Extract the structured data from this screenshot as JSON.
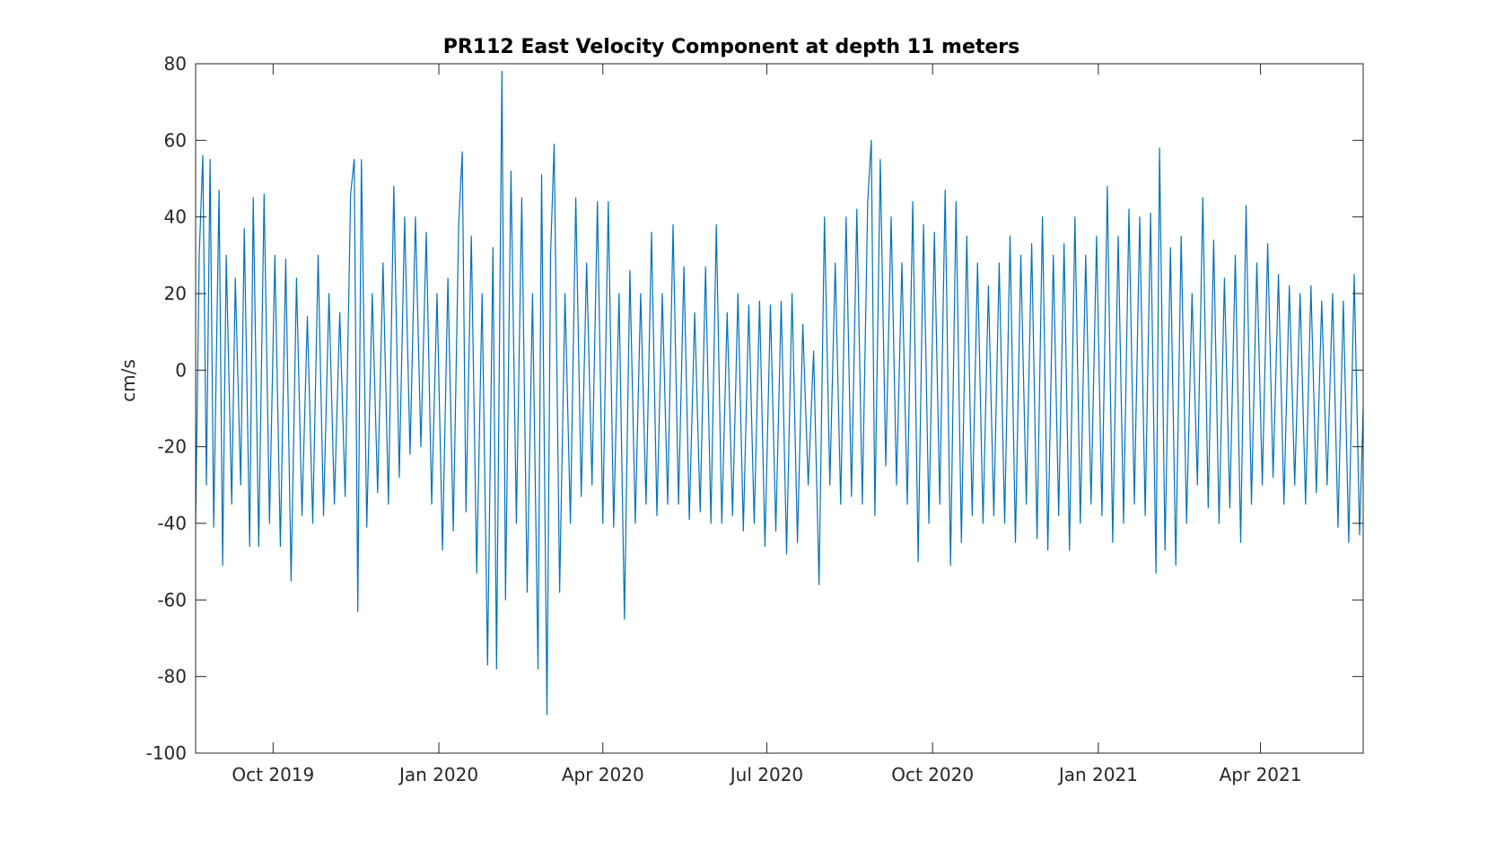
{
  "chart_data": {
    "type": "line",
    "title": "PR112 East Velocity Component at depth 11 meters",
    "xlabel": "",
    "ylabel": "cm/s",
    "x_range": [
      "2019-08-19",
      "2021-05-28"
    ],
    "ylim": [
      -100,
      80
    ],
    "yticks": [
      -100,
      -80,
      -60,
      -40,
      -20,
      0,
      20,
      40,
      60,
      80
    ],
    "xticks": [
      {
        "label": "Oct 2019",
        "date": "2019-10-01"
      },
      {
        "label": "Jan 2020",
        "date": "2020-01-01"
      },
      {
        "label": "Apr 2020",
        "date": "2020-04-01"
      },
      {
        "label": "Jul 2020",
        "date": "2020-07-01"
      },
      {
        "label": "Oct 2020",
        "date": "2020-10-01"
      },
      {
        "label": "Jan 2021",
        "date": "2021-01-01"
      },
      {
        "label": "Apr 2021",
        "date": "2021-04-01"
      }
    ],
    "grid": false,
    "series": [
      {
        "color": "#0072BD",
        "note_values": "hourly-resolution values approximated by envelope points",
        "points": [
          {
            "x": "2019-08-19",
            "y": -40
          },
          {
            "x": "2019-08-21",
            "y": 30
          },
          {
            "x": "2019-08-23",
            "y": 56
          },
          {
            "x": "2019-08-25",
            "y": -30
          },
          {
            "x": "2019-08-27",
            "y": 55
          },
          {
            "x": "2019-08-29",
            "y": -41
          },
          {
            "x": "2019-09-01",
            "y": 47
          },
          {
            "x": "2019-09-03",
            "y": -51
          },
          {
            "x": "2019-09-05",
            "y": 30
          },
          {
            "x": "2019-09-08",
            "y": -35
          },
          {
            "x": "2019-09-10",
            "y": 24
          },
          {
            "x": "2019-09-13",
            "y": -30
          },
          {
            "x": "2019-09-15",
            "y": 37
          },
          {
            "x": "2019-09-18",
            "y": -46
          },
          {
            "x": "2019-09-20",
            "y": 45
          },
          {
            "x": "2019-09-23",
            "y": -46
          },
          {
            "x": "2019-09-26",
            "y": 46
          },
          {
            "x": "2019-09-29",
            "y": -40
          },
          {
            "x": "2019-10-02",
            "y": 30
          },
          {
            "x": "2019-10-05",
            "y": -46
          },
          {
            "x": "2019-10-08",
            "y": 29
          },
          {
            "x": "2019-10-11",
            "y": -55
          },
          {
            "x": "2019-10-14",
            "y": 24
          },
          {
            "x": "2019-10-17",
            "y": -38
          },
          {
            "x": "2019-10-20",
            "y": 14
          },
          {
            "x": "2019-10-23",
            "y": -40
          },
          {
            "x": "2019-10-26",
            "y": 30
          },
          {
            "x": "2019-10-29",
            "y": -38
          },
          {
            "x": "2019-11-01",
            "y": 20
          },
          {
            "x": "2019-11-04",
            "y": -35
          },
          {
            "x": "2019-11-07",
            "y": 15
          },
          {
            "x": "2019-11-10",
            "y": -33
          },
          {
            "x": "2019-11-13",
            "y": 46
          },
          {
            "x": "2019-11-15",
            "y": 55
          },
          {
            "x": "2019-11-17",
            "y": -63
          },
          {
            "x": "2019-11-19",
            "y": 55
          },
          {
            "x": "2019-11-22",
            "y": -41
          },
          {
            "x": "2019-11-25",
            "y": 20
          },
          {
            "x": "2019-11-28",
            "y": -32
          },
          {
            "x": "2019-12-01",
            "y": 28
          },
          {
            "x": "2019-12-04",
            "y": -35
          },
          {
            "x": "2019-12-07",
            "y": 48
          },
          {
            "x": "2019-12-10",
            "y": -28
          },
          {
            "x": "2019-12-13",
            "y": 40
          },
          {
            "x": "2019-12-16",
            "y": -22
          },
          {
            "x": "2019-12-19",
            "y": 40
          },
          {
            "x": "2019-12-22",
            "y": -20
          },
          {
            "x": "2019-12-25",
            "y": 36
          },
          {
            "x": "2019-12-28",
            "y": -35
          },
          {
            "x": "2019-12-31",
            "y": 20
          },
          {
            "x": "2020-01-03",
            "y": -47
          },
          {
            "x": "2020-01-06",
            "y": 24
          },
          {
            "x": "2020-01-09",
            "y": -42
          },
          {
            "x": "2020-01-12",
            "y": 38
          },
          {
            "x": "2020-01-14",
            "y": 57
          },
          {
            "x": "2020-01-16",
            "y": -37
          },
          {
            "x": "2020-01-19",
            "y": 35
          },
          {
            "x": "2020-01-22",
            "y": -53
          },
          {
            "x": "2020-01-25",
            "y": 20
          },
          {
            "x": "2020-01-28",
            "y": -77
          },
          {
            "x": "2020-01-31",
            "y": 32
          },
          {
            "x": "2020-02-02",
            "y": -78
          },
          {
            "x": "2020-02-05",
            "y": 78
          },
          {
            "x": "2020-02-07",
            "y": -60
          },
          {
            "x": "2020-02-10",
            "y": 52
          },
          {
            "x": "2020-02-13",
            "y": -40
          },
          {
            "x": "2020-02-16",
            "y": 45
          },
          {
            "x": "2020-02-19",
            "y": -58
          },
          {
            "x": "2020-02-22",
            "y": 20
          },
          {
            "x": "2020-02-25",
            "y": -78
          },
          {
            "x": "2020-02-27",
            "y": 51
          },
          {
            "x": "2020-03-01",
            "y": -90
          },
          {
            "x": "2020-03-03",
            "y": 30
          },
          {
            "x": "2020-03-05",
            "y": 59
          },
          {
            "x": "2020-03-08",
            "y": -58
          },
          {
            "x": "2020-03-11",
            "y": 20
          },
          {
            "x": "2020-03-14",
            "y": -40
          },
          {
            "x": "2020-03-17",
            "y": 45
          },
          {
            "x": "2020-03-20",
            "y": -33
          },
          {
            "x": "2020-03-23",
            "y": 28
          },
          {
            "x": "2020-03-26",
            "y": -30
          },
          {
            "x": "2020-03-29",
            "y": 44
          },
          {
            "x": "2020-04-01",
            "y": -40
          },
          {
            "x": "2020-04-04",
            "y": 44
          },
          {
            "x": "2020-04-07",
            "y": -41
          },
          {
            "x": "2020-04-10",
            "y": 20
          },
          {
            "x": "2020-04-13",
            "y": -65
          },
          {
            "x": "2020-04-16",
            "y": 26
          },
          {
            "x": "2020-04-19",
            "y": -40
          },
          {
            "x": "2020-04-22",
            "y": 20
          },
          {
            "x": "2020-04-25",
            "y": -35
          },
          {
            "x": "2020-04-28",
            "y": 36
          },
          {
            "x": "2020-05-01",
            "y": -38
          },
          {
            "x": "2020-05-04",
            "y": 20
          },
          {
            "x": "2020-05-07",
            "y": -35
          },
          {
            "x": "2020-05-10",
            "y": 38
          },
          {
            "x": "2020-05-13",
            "y": -35
          },
          {
            "x": "2020-05-16",
            "y": 27
          },
          {
            "x": "2020-05-19",
            "y": -39
          },
          {
            "x": "2020-05-22",
            "y": 15
          },
          {
            "x": "2020-05-25",
            "y": -37
          },
          {
            "x": "2020-05-28",
            "y": 27
          },
          {
            "x": "2020-05-31",
            "y": -40
          },
          {
            "x": "2020-06-03",
            "y": 38
          },
          {
            "x": "2020-06-06",
            "y": -40
          },
          {
            "x": "2020-06-09",
            "y": 15
          },
          {
            "x": "2020-06-12",
            "y": -38
          },
          {
            "x": "2020-06-15",
            "y": 20
          },
          {
            "x": "2020-06-18",
            "y": -42
          },
          {
            "x": "2020-06-21",
            "y": 17
          },
          {
            "x": "2020-06-24",
            "y": -40
          },
          {
            "x": "2020-06-27",
            "y": 18
          },
          {
            "x": "2020-06-30",
            "y": -46
          },
          {
            "x": "2020-07-03",
            "y": 17
          },
          {
            "x": "2020-07-06",
            "y": -42
          },
          {
            "x": "2020-07-09",
            "y": 18
          },
          {
            "x": "2020-07-12",
            "y": -48
          },
          {
            "x": "2020-07-15",
            "y": 20
          },
          {
            "x": "2020-07-18",
            "y": -45
          },
          {
            "x": "2020-07-21",
            "y": 12
          },
          {
            "x": "2020-07-24",
            "y": -30
          },
          {
            "x": "2020-07-27",
            "y": 5
          },
          {
            "x": "2020-07-30",
            "y": -56
          },
          {
            "x": "2020-08-02",
            "y": 40
          },
          {
            "x": "2020-08-05",
            "y": -30
          },
          {
            "x": "2020-08-08",
            "y": 28
          },
          {
            "x": "2020-08-11",
            "y": -35
          },
          {
            "x": "2020-08-14",
            "y": 40
          },
          {
            "x": "2020-08-17",
            "y": -33
          },
          {
            "x": "2020-08-20",
            "y": 42
          },
          {
            "x": "2020-08-23",
            "y": -35
          },
          {
            "x": "2020-08-26",
            "y": 44
          },
          {
            "x": "2020-08-28",
            "y": 60
          },
          {
            "x": "2020-08-30",
            "y": -38
          },
          {
            "x": "2020-09-02",
            "y": 55
          },
          {
            "x": "2020-09-05",
            "y": -25
          },
          {
            "x": "2020-09-08",
            "y": 40
          },
          {
            "x": "2020-09-11",
            "y": -30
          },
          {
            "x": "2020-09-14",
            "y": 28
          },
          {
            "x": "2020-09-17",
            "y": -35
          },
          {
            "x": "2020-09-20",
            "y": 44
          },
          {
            "x": "2020-09-23",
            "y": -50
          },
          {
            "x": "2020-09-26",
            "y": 38
          },
          {
            "x": "2020-09-29",
            "y": -40
          },
          {
            "x": "2020-10-02",
            "y": 36
          },
          {
            "x": "2020-10-05",
            "y": -35
          },
          {
            "x": "2020-10-08",
            "y": 47
          },
          {
            "x": "2020-10-11",
            "y": -51
          },
          {
            "x": "2020-10-14",
            "y": 44
          },
          {
            "x": "2020-10-17",
            "y": -45
          },
          {
            "x": "2020-10-20",
            "y": 35
          },
          {
            "x": "2020-10-23",
            "y": -38
          },
          {
            "x": "2020-10-26",
            "y": 28
          },
          {
            "x": "2020-10-29",
            "y": -40
          },
          {
            "x": "2020-11-01",
            "y": 22
          },
          {
            "x": "2020-11-04",
            "y": -38
          },
          {
            "x": "2020-11-07",
            "y": 28
          },
          {
            "x": "2020-11-10",
            "y": -40
          },
          {
            "x": "2020-11-13",
            "y": 35
          },
          {
            "x": "2020-11-16",
            "y": -45
          },
          {
            "x": "2020-11-19",
            "y": 30
          },
          {
            "x": "2020-11-22",
            "y": -35
          },
          {
            "x": "2020-11-25",
            "y": 33
          },
          {
            "x": "2020-11-28",
            "y": -44
          },
          {
            "x": "2020-12-01",
            "y": 40
          },
          {
            "x": "2020-12-04",
            "y": -47
          },
          {
            "x": "2020-12-07",
            "y": 30
          },
          {
            "x": "2020-12-10",
            "y": -38
          },
          {
            "x": "2020-12-13",
            "y": 33
          },
          {
            "x": "2020-12-16",
            "y": -47
          },
          {
            "x": "2020-12-19",
            "y": 40
          },
          {
            "x": "2020-12-22",
            "y": -40
          },
          {
            "x": "2020-12-25",
            "y": 30
          },
          {
            "x": "2020-12-28",
            "y": -35
          },
          {
            "x": "2020-12-31",
            "y": 35
          },
          {
            "x": "2021-01-03",
            "y": -38
          },
          {
            "x": "2021-01-06",
            "y": 48
          },
          {
            "x": "2021-01-09",
            "y": -45
          },
          {
            "x": "2021-01-12",
            "y": 35
          },
          {
            "x": "2021-01-15",
            "y": -40
          },
          {
            "x": "2021-01-18",
            "y": 42
          },
          {
            "x": "2021-01-21",
            "y": -35
          },
          {
            "x": "2021-01-24",
            "y": 40
          },
          {
            "x": "2021-01-27",
            "y": -38
          },
          {
            "x": "2021-01-30",
            "y": 41
          },
          {
            "x": "2021-02-02",
            "y": -53
          },
          {
            "x": "2021-02-04",
            "y": 58
          },
          {
            "x": "2021-02-07",
            "y": -47
          },
          {
            "x": "2021-02-10",
            "y": 32
          },
          {
            "x": "2021-02-13",
            "y": -51
          },
          {
            "x": "2021-02-16",
            "y": 35
          },
          {
            "x": "2021-02-19",
            "y": -40
          },
          {
            "x": "2021-02-22",
            "y": 20
          },
          {
            "x": "2021-02-25",
            "y": -30
          },
          {
            "x": "2021-02-28",
            "y": 45
          },
          {
            "x": "2021-03-03",
            "y": -36
          },
          {
            "x": "2021-03-06",
            "y": 34
          },
          {
            "x": "2021-03-09",
            "y": -40
          },
          {
            "x": "2021-03-12",
            "y": 24
          },
          {
            "x": "2021-03-15",
            "y": -36
          },
          {
            "x": "2021-03-18",
            "y": 30
          },
          {
            "x": "2021-03-21",
            "y": -45
          },
          {
            "x": "2021-03-24",
            "y": 43
          },
          {
            "x": "2021-03-27",
            "y": -35
          },
          {
            "x": "2021-03-30",
            "y": 28
          },
          {
            "x": "2021-04-02",
            "y": -30
          },
          {
            "x": "2021-04-05",
            "y": 33
          },
          {
            "x": "2021-04-08",
            "y": -28
          },
          {
            "x": "2021-04-11",
            "y": 25
          },
          {
            "x": "2021-04-14",
            "y": -35
          },
          {
            "x": "2021-04-17",
            "y": 22
          },
          {
            "x": "2021-04-20",
            "y": -30
          },
          {
            "x": "2021-04-23",
            "y": 20
          },
          {
            "x": "2021-04-26",
            "y": -35
          },
          {
            "x": "2021-04-29",
            "y": 22
          },
          {
            "x": "2021-05-02",
            "y": -32
          },
          {
            "x": "2021-05-05",
            "y": 18
          },
          {
            "x": "2021-05-08",
            "y": -30
          },
          {
            "x": "2021-05-11",
            "y": 20
          },
          {
            "x": "2021-05-14",
            "y": -41
          },
          {
            "x": "2021-05-17",
            "y": 18
          },
          {
            "x": "2021-05-20",
            "y": -45
          },
          {
            "x": "2021-05-23",
            "y": 25
          },
          {
            "x": "2021-05-26",
            "y": -43
          },
          {
            "x": "2021-05-28",
            "y": -10
          }
        ]
      }
    ]
  }
}
